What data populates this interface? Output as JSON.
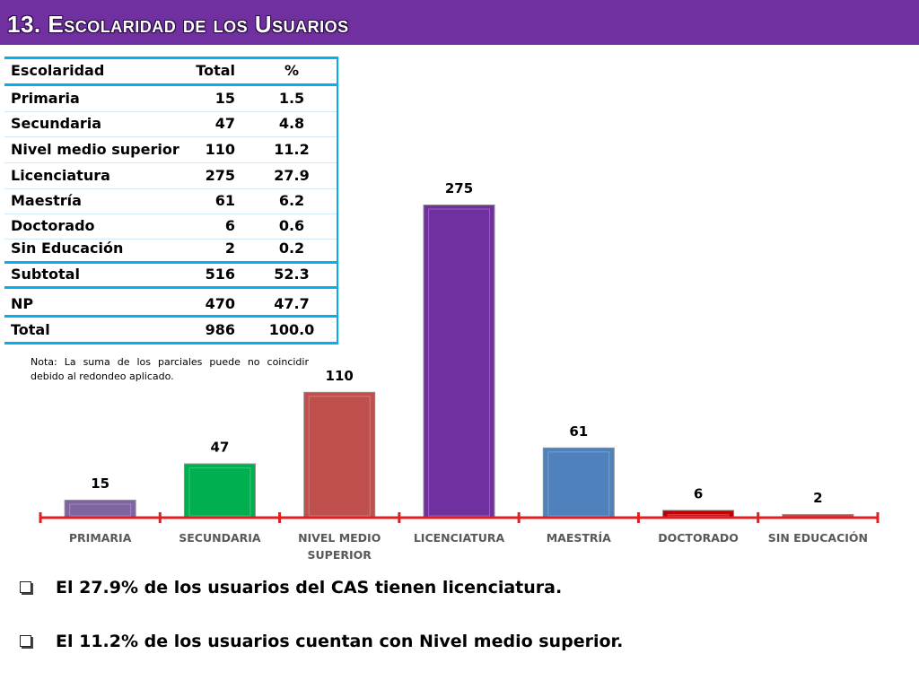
{
  "title": "13. Escolaridad de los Usuarios",
  "colors": {
    "title_bar": "#7030a0",
    "axis": "#e02020",
    "table_lines": "#00b0f0"
  },
  "table": {
    "headers": [
      "Escolaridad",
      "Total",
      "%"
    ],
    "rows": [
      {
        "name": "Primaria",
        "total": "15",
        "pct": "1.5"
      },
      {
        "name": "Secundaria",
        "total": "47",
        "pct": "4.8"
      },
      {
        "name": "Nivel medio superior",
        "total": "110",
        "pct": "11.2"
      },
      {
        "name": "Licenciatura",
        "total": "275",
        "pct": "27.9"
      },
      {
        "name": "Maestría",
        "total": "61",
        "pct": "6.2"
      },
      {
        "name": "Doctorado",
        "total": "6",
        "pct": "0.6"
      },
      {
        "name": "Sin Educación",
        "total": "2",
        "pct": "0.2"
      }
    ],
    "subtotal": {
      "name": "Subtotal",
      "total": "516",
      "pct": "52.3"
    },
    "np": {
      "name": "NP",
      "total": "470",
      "pct": "47.7"
    },
    "total": {
      "name": "Total",
      "total": "986",
      "pct": "100.0"
    }
  },
  "note": "Nota: La suma de los parciales puede no coincidir debido al redondeo aplicado.",
  "chart_data": {
    "type": "bar",
    "categories": [
      "PRIMARIA",
      "SECUNDARIA",
      "NIVEL MEDIO SUPERIOR",
      "LICENCIATURA",
      "MAESTRÍA",
      "DOCTORADO",
      "SIN EDUCACIÓN"
    ],
    "category_lines": [
      [
        "PRIMARIA"
      ],
      [
        "SECUNDARIA"
      ],
      [
        "NIVEL MEDIO",
        "SUPERIOR"
      ],
      [
        "LICENCIATURA"
      ],
      [
        "MAESTRÍA"
      ],
      [
        "DOCTORADO"
      ],
      [
        "SIN EDUCACIÓN"
      ]
    ],
    "values": [
      15,
      47,
      110,
      275,
      61,
      6,
      2
    ],
    "colors": [
      "#8064a2",
      "#00b050",
      "#c0504d",
      "#7030a0",
      "#4f81bd",
      "#c00000",
      "#c0504d"
    ],
    "title": "",
    "xlabel": "",
    "ylabel": "",
    "ylim": [
      0,
      275
    ],
    "grid": false,
    "legend": "none"
  },
  "bullets": [
    "El 27.9% de los usuarios del CAS tienen licenciatura.",
    "El 11.2% de los usuarios cuentan con Nivel medio superior."
  ]
}
